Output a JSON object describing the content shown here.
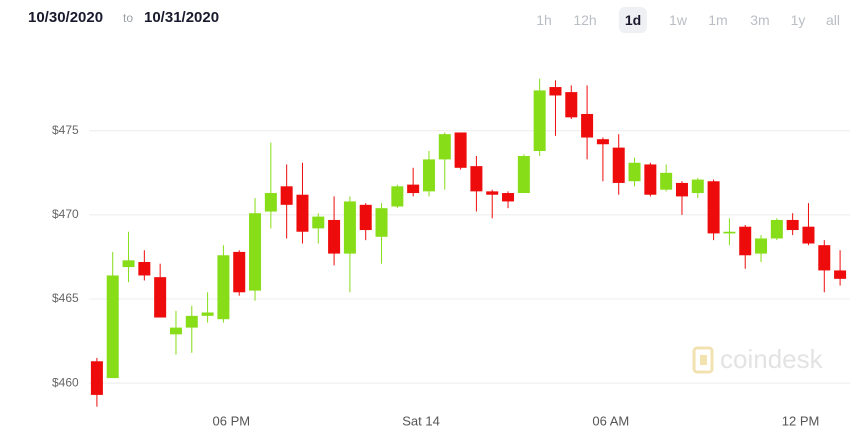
{
  "header": {
    "from": "10/30/2020",
    "separator": "to",
    "to": "10/31/2020",
    "ranges": [
      "1h",
      "12h",
      "1d",
      "1w",
      "1m",
      "3m",
      "1y",
      "all"
    ],
    "selected_range_index": 2
  },
  "chart_data": {
    "type": "candlestick",
    "watermark": "coindesk",
    "categories": [
      null,
      null,
      null,
      null,
      null,
      null,
      null,
      null,
      null,
      "06 PM",
      null,
      null,
      null,
      null,
      null,
      null,
      null,
      null,
      null,
      null,
      null,
      "Sat 14",
      null,
      null,
      null,
      null,
      null,
      null,
      null,
      null,
      null,
      null,
      null,
      "06 AM",
      null,
      null,
      null,
      null,
      null,
      null,
      null,
      null,
      null,
      null,
      null,
      "12 PM",
      null,
      null
    ],
    "open": [
      461.3,
      460.3,
      466.9,
      467.2,
      466.3,
      462.9,
      463.3,
      464.0,
      463.8,
      467.8,
      465.5,
      470.2,
      471.7,
      471.2,
      469.2,
      469.7,
      467.7,
      470.6,
      468.7,
      470.5,
      471.8,
      471.4,
      473.3,
      474.9,
      472.9,
      471.4,
      471.3,
      471.3,
      473.8,
      477.6,
      477.3,
      476.0,
      474.5,
      474.0,
      472.0,
      473.0,
      471.5,
      471.9,
      471.3,
      472.0,
      468.9,
      469.3,
      467.7,
      468.6,
      469.7,
      469.3,
      468.2,
      466.7
    ],
    "high": [
      461.5,
      467.8,
      469.0,
      467.9,
      467.1,
      464.3,
      464.6,
      465.4,
      468.2,
      467.9,
      471.0,
      474.3,
      473.0,
      473.1,
      470.1,
      471.1,
      471.1,
      470.7,
      470.7,
      471.8,
      472.8,
      473.8,
      474.9,
      474.9,
      473.5,
      471.5,
      471.4,
      473.6,
      478.1,
      478.0,
      477.7,
      477.7,
      474.6,
      474.8,
      473.4,
      473.1,
      473.0,
      472.0,
      472.2,
      472.1,
      469.8,
      469.4,
      468.8,
      469.8,
      470.1,
      470.7,
      468.5,
      467.9
    ],
    "low": [
      458.6,
      460.3,
      466.0,
      466.1,
      463.9,
      461.7,
      461.8,
      463.6,
      463.6,
      465.2,
      464.9,
      469.2,
      468.6,
      468.3,
      468.3,
      467.0,
      465.4,
      468.5,
      467.1,
      470.4,
      471.1,
      471.1,
      471.5,
      472.7,
      470.2,
      469.8,
      470.4,
      471.3,
      473.5,
      474.7,
      475.7,
      473.3,
      472.0,
      471.2,
      471.7,
      471.1,
      471.4,
      470.0,
      471.0,
      468.5,
      468.2,
      466.8,
      467.2,
      468.5,
      468.8,
      468.2,
      465.4,
      465.8
    ],
    "close": [
      459.3,
      466.4,
      467.3,
      466.4,
      463.9,
      463.3,
      464.0,
      464.2,
      467.6,
      465.4,
      470.1,
      471.3,
      470.6,
      469.0,
      469.9,
      467.7,
      470.8,
      469.1,
      470.4,
      471.7,
      471.3,
      473.3,
      474.8,
      472.8,
      471.4,
      471.2,
      470.8,
      473.5,
      477.4,
      477.1,
      475.8,
      474.6,
      474.2,
      471.9,
      473.1,
      471.2,
      472.5,
      471.1,
      472.1,
      468.9,
      469.0,
      467.6,
      468.6,
      469.7,
      469.1,
      468.3,
      466.7,
      466.2
    ],
    "up_color": "#86dd18",
    "down_color": "#ee0b0b",
    "ylim": [
      458.7,
      480.1
    ],
    "yticks": [
      {
        "value": 460,
        "label": "$460"
      },
      {
        "value": 465,
        "label": "$465"
      },
      {
        "value": 470,
        "label": "$470"
      },
      {
        "value": 475,
        "label": "$475"
      }
    ],
    "grid": true
  }
}
